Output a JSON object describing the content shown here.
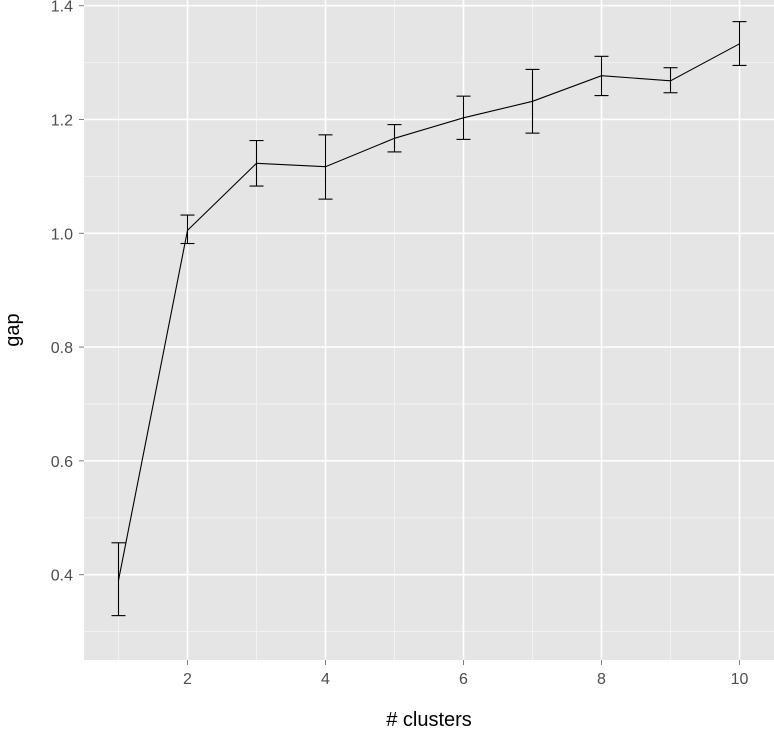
{
  "chart_data": {
    "type": "line",
    "title": "",
    "xlabel": "# clusters",
    "ylabel": "gap",
    "xlim": [
      0.5,
      10.5
    ],
    "ylim": [
      0.25,
      1.41
    ],
    "x_ticks": [
      2,
      4,
      6,
      8,
      10
    ],
    "y_ticks": [
      0.4,
      0.6,
      0.8,
      1.0,
      1.2,
      1.4
    ],
    "y_tick_labels": [
      "0.4",
      "0.6",
      "0.8",
      "1.0",
      "1.2",
      "1.4"
    ],
    "grid": true,
    "error_bars": true,
    "series": [
      {
        "x": [
          1,
          2,
          3,
          4,
          5,
          6,
          7,
          8,
          9,
          10
        ],
        "values": [
          0.39,
          1.005,
          1.123,
          1.117,
          1.167,
          1.203,
          1.232,
          1.277,
          1.268,
          1.333
        ],
        "lower": [
          0.328,
          0.982,
          1.083,
          1.06,
          1.143,
          1.165,
          1.176,
          1.242,
          1.247,
          1.295
        ],
        "upper": [
          0.456,
          1.032,
          1.163,
          1.173,
          1.191,
          1.241,
          1.288,
          1.311,
          1.291,
          1.372
        ]
      }
    ]
  },
  "colors": {
    "panel_background": "#e5e5e5",
    "major_grid": "#ffffff",
    "minor_grid": "#f2f2f2",
    "line": "#000000",
    "tick_text": "#4d4d4d",
    "axis_title": "#000000"
  }
}
